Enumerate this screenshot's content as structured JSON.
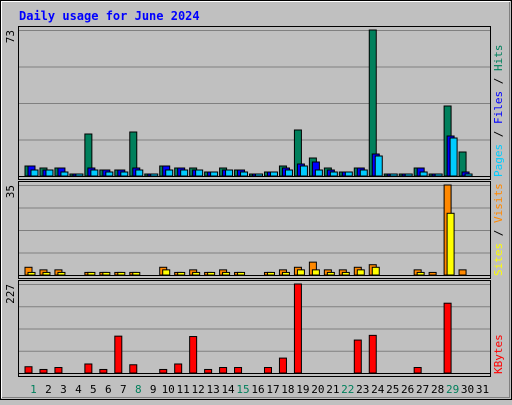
{
  "chart_data": {
    "type": "bar",
    "title": "Daily usage for June 2024",
    "categories": [
      "1",
      "2",
      "3",
      "4",
      "5",
      "6",
      "7",
      "8",
      "9",
      "10",
      "11",
      "12",
      "13",
      "14",
      "15",
      "16",
      "17",
      "18",
      "19",
      "20",
      "21",
      "22",
      "23",
      "24",
      "25",
      "26",
      "27",
      "28",
      "29",
      "30",
      "31"
    ],
    "weekend_days": [
      1,
      8,
      15,
      22,
      29
    ],
    "panels": [
      {
        "id": "hits-files-pages",
        "max_label": "73",
        "ylim": [
          0,
          73
        ],
        "legend": [
          "Pages",
          "Files",
          "Hits"
        ],
        "series": [
          {
            "name": "Hits",
            "color": "#00805c",
            "values": [
              5,
              4,
              4,
              1,
              21,
              3,
              3,
              22,
              1,
              5,
              4,
              4,
              2,
              4,
              3,
              1,
              2,
              5,
              23,
              9,
              4,
              2,
              4,
              73,
              1,
              1,
              4,
              1,
              35,
              12,
              0
            ]
          },
          {
            "name": "Files",
            "color": "#0000ff",
            "values": [
              5,
              3,
              4,
              1,
              4,
              3,
              3,
              4,
              1,
              5,
              4,
              3,
              2,
              3,
              3,
              1,
              2,
              4,
              6,
              7,
              3,
              2,
              4,
              11,
              1,
              1,
              4,
              1,
              20,
              2,
              0
            ]
          },
          {
            "name": "Pages",
            "color": "#00ccff",
            "values": [
              3,
              3,
              2,
              1,
              3,
              2,
              2,
              3,
              1,
              3,
              3,
              3,
              2,
              3,
              2,
              1,
              2,
              3,
              5,
              3,
              2,
              2,
              3,
              10,
              1,
              1,
              2,
              1,
              19,
              1,
              0
            ]
          }
        ]
      },
      {
        "id": "visits-sites",
        "max_label": "35",
        "ylim": [
          0,
          35
        ],
        "legend": [
          "Sites",
          "Visits"
        ],
        "series": [
          {
            "name": "Visits",
            "color": "#ff8800",
            "values": [
              3,
              2,
              2,
              0,
              1,
              1,
              1,
              1,
              0,
              3,
              1,
              2,
              1,
              2,
              1,
              0,
              1,
              2,
              3,
              5,
              2,
              2,
              3,
              4,
              0,
              0,
              2,
              1,
              35,
              2,
              0
            ]
          },
          {
            "name": "Sites",
            "color": "#ffff00",
            "values": [
              1,
              1,
              1,
              0,
              1,
              1,
              1,
              1,
              0,
              2,
              1,
              1,
              1,
              1,
              1,
              0,
              1,
              1,
              2,
              2,
              1,
              1,
              2,
              3,
              0,
              0,
              1,
              0,
              24,
              0,
              0
            ]
          }
        ]
      },
      {
        "id": "kbytes",
        "max_label": "227",
        "ylim": [
          0,
          227
        ],
        "legend": [
          "KBytes"
        ],
        "series": [
          {
            "name": "KBytes",
            "color": "#ff0000",
            "values": [
              16,
              9,
              14,
              0,
              23,
              9,
              94,
              21,
              0,
              9,
              23,
              93,
              9,
              14,
              14,
              0,
              14,
              38,
              227,
              0,
              0,
              0,
              84,
              96,
              0,
              0,
              14,
              0,
              178,
              0,
              0
            ]
          }
        ]
      }
    ]
  },
  "colors": {
    "background": "#c0c0c0",
    "title": "#0000ff",
    "grid": "#808080",
    "weekday_label": "#000000",
    "weekend_label": "#00805c"
  }
}
